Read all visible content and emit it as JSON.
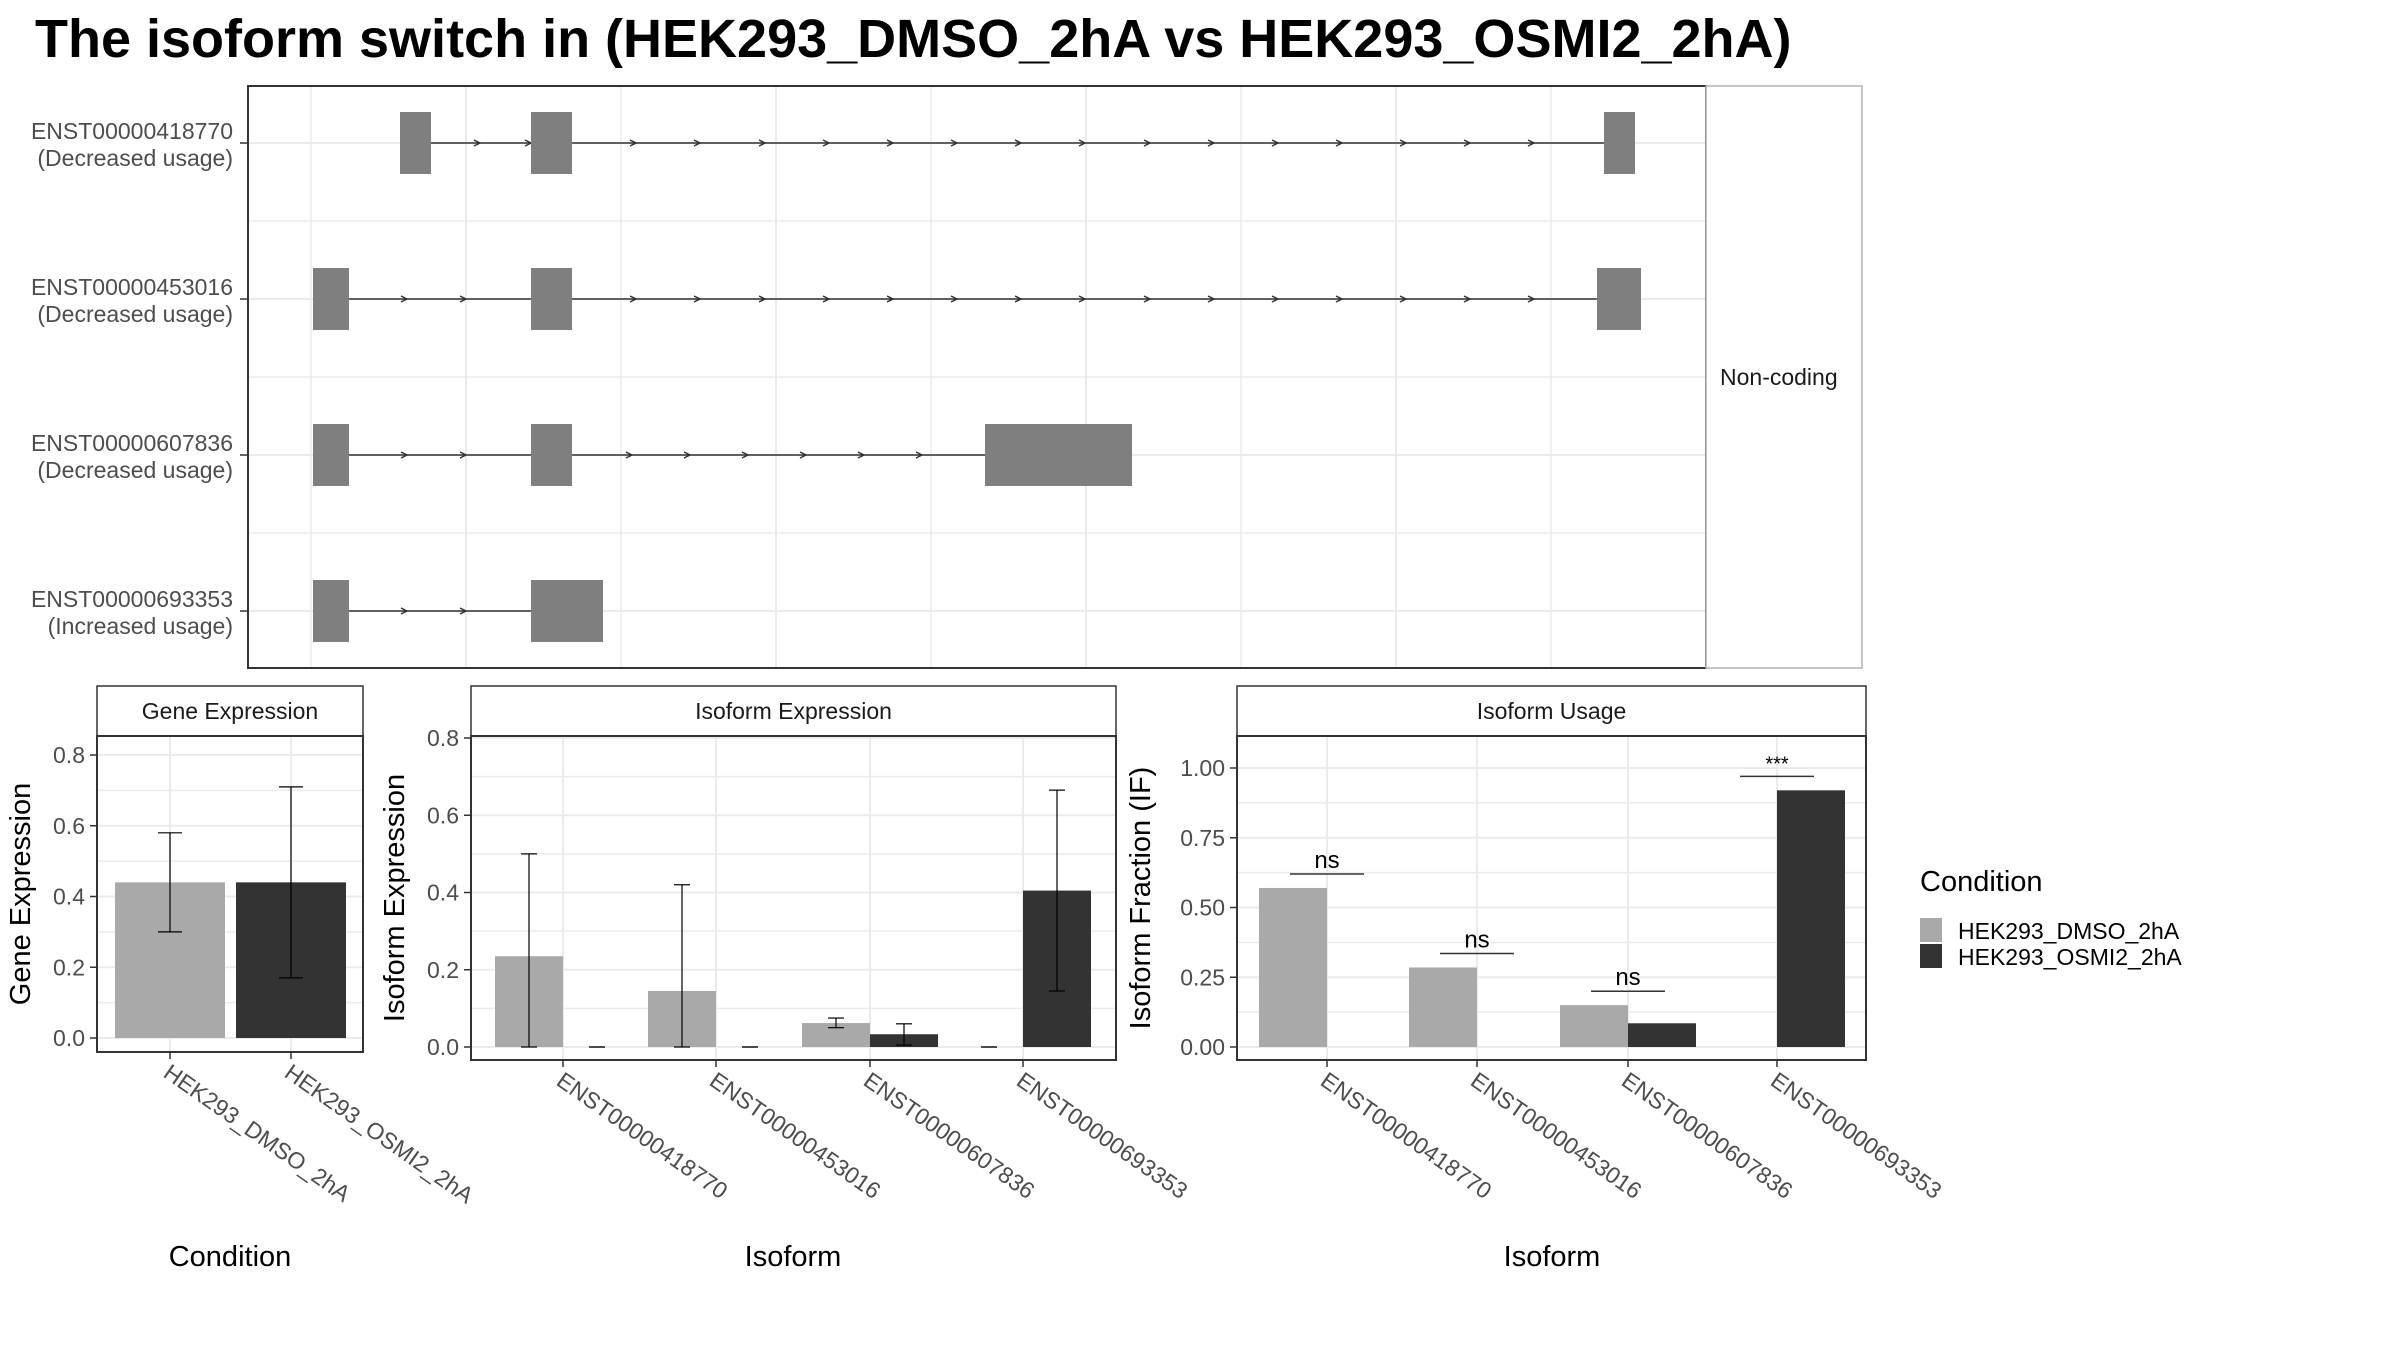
{
  "title": "The isoform switch in  (HEK293_DMSO_2hA vs HEK293_OSMI2_2hA)",
  "colors": {
    "dmso": "#a9a9a9",
    "osmi": "#333333",
    "exon": "#7f7f7f",
    "grid": "#ebebeb",
    "border": "#333333"
  },
  "chart_data": [
    {
      "panel": "transcript-structure",
      "type": "diagram",
      "facet_label": "Non-coding",
      "isoforms": [
        {
          "id": "ENST00000418770",
          "usage": "(Decreased usage)"
        },
        {
          "id": "ENST00000453016",
          "usage": "(Decreased usage)"
        },
        {
          "id": "ENST00000607836",
          "usage": "(Decreased usage)"
        },
        {
          "id": "ENST00000693353",
          "usage": "(Increased usage)"
        }
      ]
    },
    {
      "panel": "gene-expression",
      "type": "bar",
      "strip": "Gene Expression",
      "xlabel": "Condition",
      "ylabel": "Gene Expression",
      "ylim": [
        0,
        0.84
      ],
      "yticks": [
        "0.0",
        "0.2",
        "0.4",
        "0.6",
        "0.8"
      ],
      "categories": [
        "HEK293_DMSO_2hA",
        "HEK293_OSMI2_2hA"
      ],
      "values": [
        0.44,
        0.44
      ],
      "err_low": [
        0.3,
        0.17
      ],
      "err_high": [
        0.58,
        0.71
      ]
    },
    {
      "panel": "isoform-expression",
      "type": "bar",
      "strip": "Isoform Expression",
      "xlabel": "Isoform",
      "ylabel": "Isoform Expression",
      "ylim": [
        0,
        0.84
      ],
      "yticks": [
        "0.0",
        "0.2",
        "0.4",
        "0.6",
        "0.8"
      ],
      "categories": [
        "ENST00000418770",
        "ENST00000453016",
        "ENST00000607836",
        "ENST00000693353"
      ],
      "series": [
        {
          "name": "HEK293_DMSO_2hA",
          "values": [
            0.235,
            0.145,
            0.062,
            0.0
          ],
          "err_low": [
            0.0,
            0.0,
            0.05,
            0.0
          ],
          "err_high": [
            0.5,
            0.42,
            0.075,
            0.0
          ]
        },
        {
          "name": "HEK293_OSMI2_2hA",
          "values": [
            0.0,
            0.0,
            0.033,
            0.405
          ],
          "err_low": [
            0.0,
            0.0,
            0.005,
            0.145
          ],
          "err_high": [
            0.0,
            0.0,
            0.06,
            0.665
          ]
        }
      ]
    },
    {
      "panel": "isoform-usage",
      "type": "bar",
      "strip": "Isoform Usage",
      "xlabel": "Isoform",
      "ylabel": "Isoform Fraction (IF)",
      "ylim": [
        0,
        1.11
      ],
      "yticks": [
        "0.00",
        "0.25",
        "0.50",
        "0.75",
        "1.00"
      ],
      "categories": [
        "ENST00000418770",
        "ENST00000453016",
        "ENST00000607836",
        "ENST00000693353"
      ],
      "series": [
        {
          "name": "HEK293_DMSO_2hA",
          "values": [
            0.57,
            0.285,
            0.15,
            0.0
          ]
        },
        {
          "name": "HEK293_OSMI2_2hA",
          "values": [
            0.0,
            0.0,
            0.085,
            0.92
          ]
        }
      ],
      "significance": [
        "ns",
        "ns",
        "ns",
        "***"
      ],
      "sig_levels": [
        0.62,
        0.335,
        0.2,
        0.97
      ]
    }
  ],
  "legend": {
    "title": "Condition",
    "items": [
      "HEK293_DMSO_2hA",
      "HEK293_OSMI2_2hA"
    ]
  }
}
